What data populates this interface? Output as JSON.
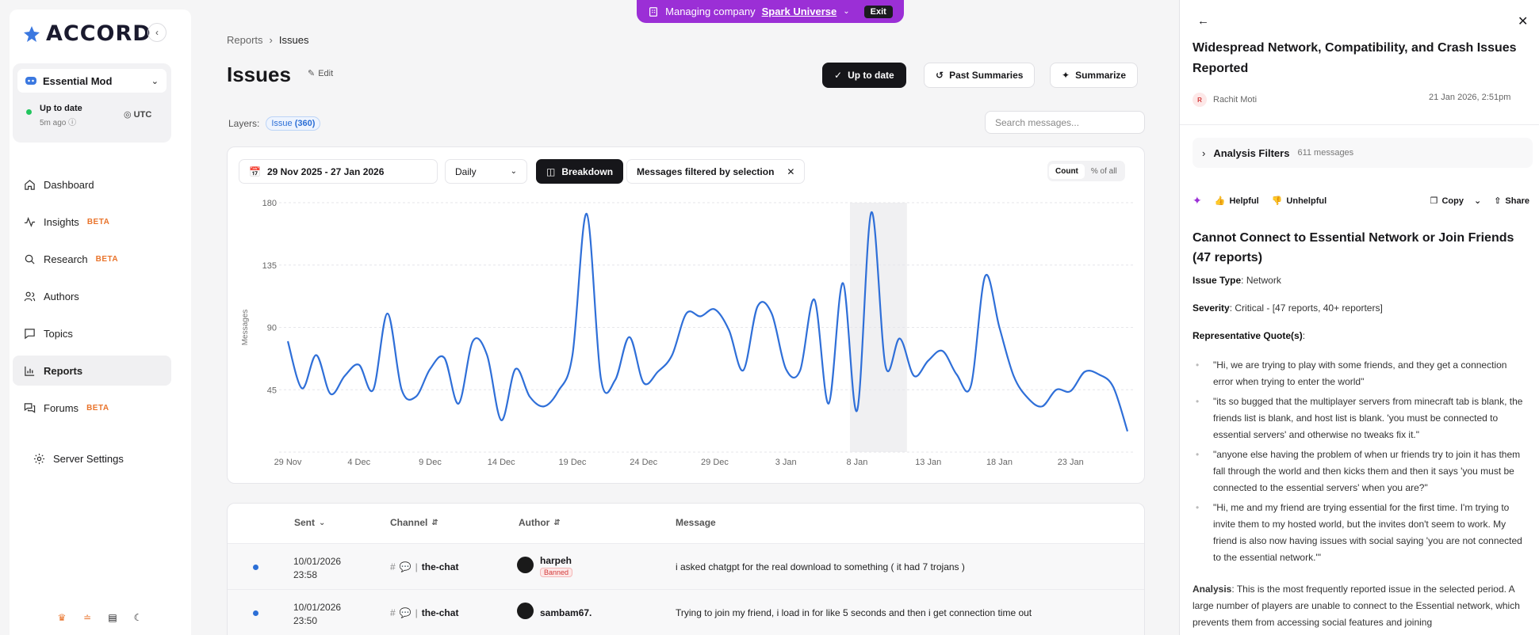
{
  "banner": {
    "prefix": "Managing company",
    "company": "Spark Universe",
    "exit": "Exit"
  },
  "sidebar": {
    "logo": "ACCORD",
    "server": "Essential Mod",
    "status": {
      "title": "Up to date",
      "time": "5m ago",
      "timezone": "UTC"
    },
    "items": [
      {
        "label": "Dashboard",
        "icon": "home-icon"
      },
      {
        "label": "Insights",
        "icon": "activity-icon",
        "badge": "BETA"
      },
      {
        "label": "Research",
        "icon": "search-icon",
        "badge": "BETA"
      },
      {
        "label": "Authors",
        "icon": "users-icon"
      },
      {
        "label": "Topics",
        "icon": "message-icon"
      },
      {
        "label": "Reports",
        "icon": "bar-chart-icon"
      },
      {
        "label": "Forums",
        "icon": "forum-icon",
        "badge": "BETA"
      }
    ],
    "settings": "Server Settings"
  },
  "breadcrumb": {
    "parent": "Reports",
    "current": "Issues"
  },
  "page": {
    "title": "Issues",
    "edit": "Edit",
    "up_to_date": "Up to date",
    "past_summaries": "Past Summaries",
    "summarize": "Summarize",
    "layers_label": "Layers:",
    "layer_chip": "Issue",
    "layer_count": "(360)",
    "search_placeholder": "Search messages..."
  },
  "chart_controls": {
    "date_range": "29 Nov 2025 - 27 Jan 2026",
    "interval": "Daily",
    "breakdown": "Breakdown",
    "filter": "Messages filtered by selection",
    "toggle_count": "Count",
    "toggle_pct": "% of all"
  },
  "chart_data": {
    "type": "line",
    "ylabel": "Messages",
    "ylim": [
      0,
      180
    ],
    "yticks": [
      45,
      90,
      135,
      180
    ],
    "xticks": [
      "29 Nov",
      "4 Dec",
      "9 Dec",
      "14 Dec",
      "19 Dec",
      "24 Dec",
      "29 Dec",
      "3 Jan",
      "8 Jan",
      "13 Jan",
      "18 Jan",
      "23 Jan"
    ],
    "highlight": {
      "from": 39.5,
      "to": 43.5
    },
    "x": [
      0,
      1,
      2,
      3,
      4,
      5,
      6,
      7,
      8,
      9,
      10,
      11,
      12,
      13,
      14,
      15,
      16,
      17,
      18,
      19,
      20,
      21,
      22,
      23,
      24,
      25,
      26,
      27,
      28,
      29,
      30,
      31,
      32,
      33,
      34,
      35,
      36,
      37,
      38,
      39,
      40,
      41,
      42,
      43,
      44,
      45,
      46,
      47,
      48,
      49,
      50,
      51,
      52,
      53,
      54,
      55,
      56,
      57,
      58,
      59
    ],
    "values": [
      80,
      46,
      70,
      42,
      55,
      63,
      45,
      100,
      45,
      40,
      60,
      68,
      35,
      80,
      70,
      23,
      60,
      40,
      33,
      44,
      70,
      172,
      53,
      52,
      83,
      50,
      58,
      70,
      100,
      98,
      103,
      88,
      59,
      105,
      100,
      60,
      59,
      110,
      35,
      122,
      30,
      173,
      62,
      82,
      55,
      66,
      73,
      56,
      48,
      127,
      90,
      55,
      39,
      33,
      45,
      44,
      58,
      56,
      47,
      15
    ]
  },
  "table": {
    "headers": {
      "sent": "Sent",
      "channel": "Channel",
      "author": "Author",
      "message": "Message"
    },
    "rows": [
      {
        "date": "10/01/2026",
        "time": "23:58",
        "channel": "the-chat",
        "author": "harpeh",
        "banned": "Banned",
        "message": "i asked chatgpt for the real download to something ( it had 7 trojans )"
      },
      {
        "date": "10/01/2026",
        "time": "23:50",
        "channel": "the-chat",
        "author": "sambam67.",
        "banned": "",
        "message": "Trying to join my friend, i load in for like 5 seconds and then i get connection time out"
      }
    ]
  },
  "panel": {
    "title": "Widespread Network, Compatibility, and Crash Issues Reported",
    "author_initial": "R",
    "author": "Rachit Moti",
    "date": "21 Jan 2026, 2:51pm",
    "filters_label": "Analysis Filters",
    "filters_count": "611 messages",
    "helpful": "Helpful",
    "unhelpful": "Unhelpful",
    "copy": "Copy",
    "share": "Share",
    "issue_heading": "Cannot Connect to Essential Network or Join Friends (47 reports)",
    "issue_type_label": "Issue Type",
    "issue_type": "Network",
    "severity_label": "Severity",
    "severity": "Critical - [47 reports, 40+ reporters]",
    "quotes_label": "Representative Quote(s)",
    "quotes": [
      "\"Hi, we are trying to play with some friends, and they get a connection error when trying to enter the world\"",
      "\"its so bugged that the multiplayer servers from minecraft tab is blank, the friends list is blank, and host list is blank. 'you must be connected to essential servers' and otherwise no tweaks fix it.\"",
      "\"anyone else having the problem of when ur friends try to join it has them fall through the world and then kicks them and then it says 'you must be connected to the essential servers' when you are?\"",
      "\"Hi, me and my friend are trying essential for the first time. I'm trying to invite them to my hosted world, but the invites don't seem to work. My friend is also now having issues with social saying 'you are not connected to the essential network.'\""
    ],
    "analysis_label": "Analysis",
    "analysis": "This is the most frequently reported issue in the selected period. A large number of players are unable to connect to the Essential network, which prevents them from accessing social features and joining"
  }
}
